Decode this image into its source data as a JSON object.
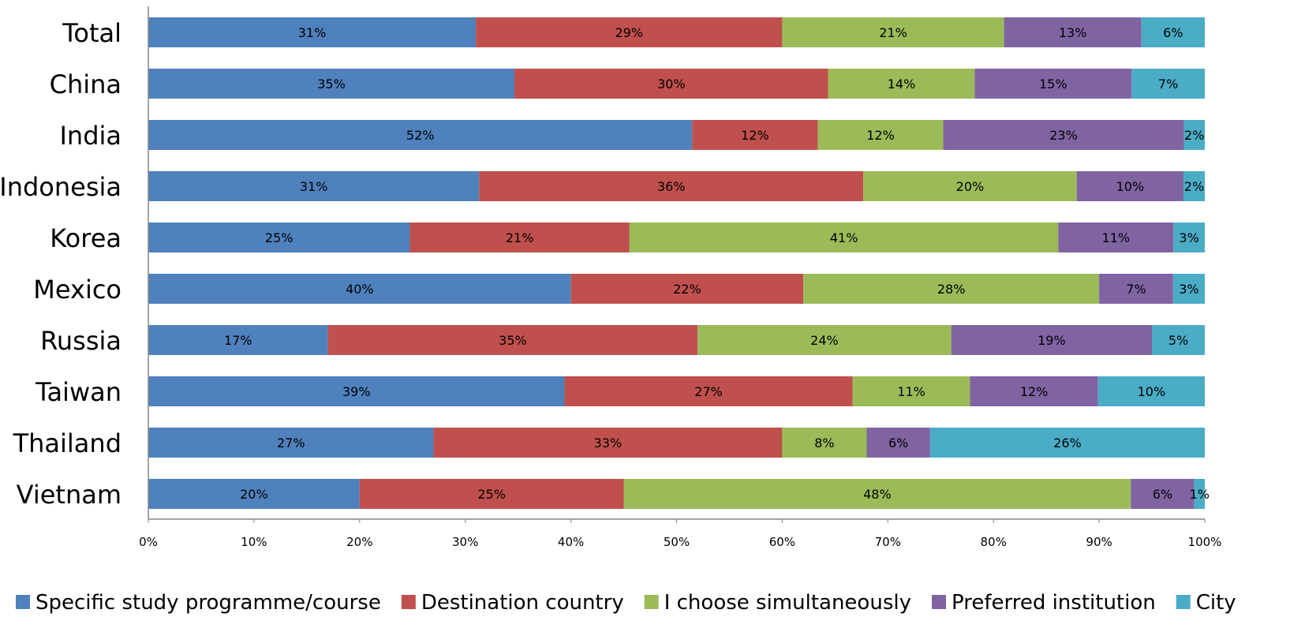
{
  "chart_data": {
    "type": "bar",
    "orientation": "horizontal",
    "stacked": true,
    "normalized": true,
    "categories": [
      "Total",
      "China",
      "India",
      "Indonesia",
      "Korea",
      "Mexico",
      "Russia",
      "Taiwan",
      "Thailand",
      "Vietnam"
    ],
    "series": [
      {
        "name": "Specific study programme/course",
        "color": "#4F81BD",
        "values": [
          31,
          35,
          52,
          31,
          25,
          40,
          17,
          39,
          27,
          20
        ]
      },
      {
        "name": "Destination country",
        "color": "#C0504D",
        "values": [
          29,
          30,
          12,
          36,
          21,
          22,
          35,
          27,
          33,
          25
        ]
      },
      {
        "name": "I choose simultaneously",
        "color": "#9BBB59",
        "values": [
          21,
          14,
          12,
          20,
          41,
          28,
          24,
          11,
          8,
          48
        ]
      },
      {
        "name": "Preferred institution",
        "color": "#8064A2",
        "values": [
          13,
          15,
          23,
          10,
          11,
          7,
          19,
          12,
          6,
          6
        ]
      },
      {
        "name": "City",
        "color": "#4BACC6",
        "values": [
          6,
          7,
          2,
          2,
          3,
          3,
          5,
          10,
          26,
          1
        ]
      }
    ],
    "xlim": [
      0,
      100
    ],
    "xticks": [
      "0%",
      "10%",
      "20%",
      "30%",
      "40%",
      "50%",
      "60%",
      "70%",
      "80%",
      "90%",
      "100%"
    ],
    "value_suffix": "%",
    "title": "",
    "xlabel": "",
    "ylabel": "",
    "grid": false,
    "legend": "bottom"
  }
}
